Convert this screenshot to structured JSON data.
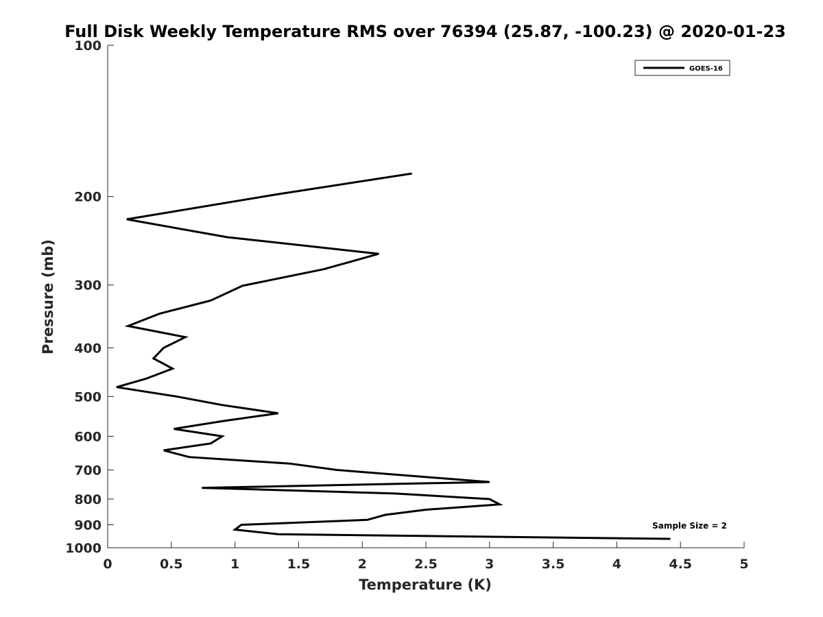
{
  "chart_data": {
    "type": "line",
    "title": "Full Disk Weekly Temperature RMS over 76394 (25.87, -100.23) @ 2020-01-23",
    "xlabel": "Temperature (K)",
    "ylabel": "Pressure (mb)",
    "xlim": [
      0,
      5
    ],
    "ylim": [
      100,
      1000
    ],
    "yscale": "log",
    "y_reversed": true,
    "xticks": [
      0,
      0.5,
      1,
      1.5,
      2,
      2.5,
      3,
      3.5,
      4,
      4.5,
      5
    ],
    "xtick_labels": [
      "0",
      "0.5",
      "1",
      "1.5",
      "2",
      "2.5",
      "3",
      "3.5",
      "4",
      "4.5",
      "5"
    ],
    "yticks": [
      100,
      200,
      300,
      400,
      500,
      600,
      700,
      800,
      900,
      1000
    ],
    "ytick_labels": [
      "100",
      "200",
      "300",
      "400",
      "500",
      "600",
      "700",
      "800",
      "900",
      "1000"
    ],
    "grid": false,
    "legend": {
      "position": "top-right",
      "entries": [
        "GOES-16"
      ]
    },
    "annotation": "Sample Size = 2",
    "series": [
      {
        "name": "GOES-16",
        "color": "#000000",
        "points": [
          {
            "t": 2.39,
            "p": 180
          },
          {
            "t": 1.33,
            "p": 198
          },
          {
            "t": 0.15,
            "p": 222
          },
          {
            "t": 0.94,
            "p": 241
          },
          {
            "t": 2.13,
            "p": 260
          },
          {
            "t": 1.7,
            "p": 279
          },
          {
            "t": 1.06,
            "p": 301
          },
          {
            "t": 0.81,
            "p": 322
          },
          {
            "t": 0.41,
            "p": 342
          },
          {
            "t": 0.16,
            "p": 362
          },
          {
            "t": 0.61,
            "p": 381
          },
          {
            "t": 0.44,
            "p": 400
          },
          {
            "t": 0.36,
            "p": 420
          },
          {
            "t": 0.51,
            "p": 440
          },
          {
            "t": 0.3,
            "p": 461
          },
          {
            "t": 0.07,
            "p": 479
          },
          {
            "t": 0.54,
            "p": 500
          },
          {
            "t": 0.9,
            "p": 520
          },
          {
            "t": 1.34,
            "p": 540
          },
          {
            "t": 0.9,
            "p": 560
          },
          {
            "t": 0.52,
            "p": 580
          },
          {
            "t": 0.9,
            "p": 600
          },
          {
            "t": 0.81,
            "p": 620
          },
          {
            "t": 0.44,
            "p": 640
          },
          {
            "t": 0.64,
            "p": 660
          },
          {
            "t": 1.43,
            "p": 680
          },
          {
            "t": 1.8,
            "p": 700
          },
          {
            "t": 3.0,
            "p": 740
          },
          {
            "t": 0.74,
            "p": 760
          },
          {
            "t": 2.26,
            "p": 780
          },
          {
            "t": 3.0,
            "p": 800
          },
          {
            "t": 3.08,
            "p": 820
          },
          {
            "t": 2.5,
            "p": 840
          },
          {
            "t": 2.18,
            "p": 860
          },
          {
            "t": 2.04,
            "p": 880
          },
          {
            "t": 1.05,
            "p": 900
          },
          {
            "t": 1.0,
            "p": 920
          },
          {
            "t": 1.34,
            "p": 940
          },
          {
            "t": 4.42,
            "p": 960
          }
        ]
      }
    ]
  }
}
